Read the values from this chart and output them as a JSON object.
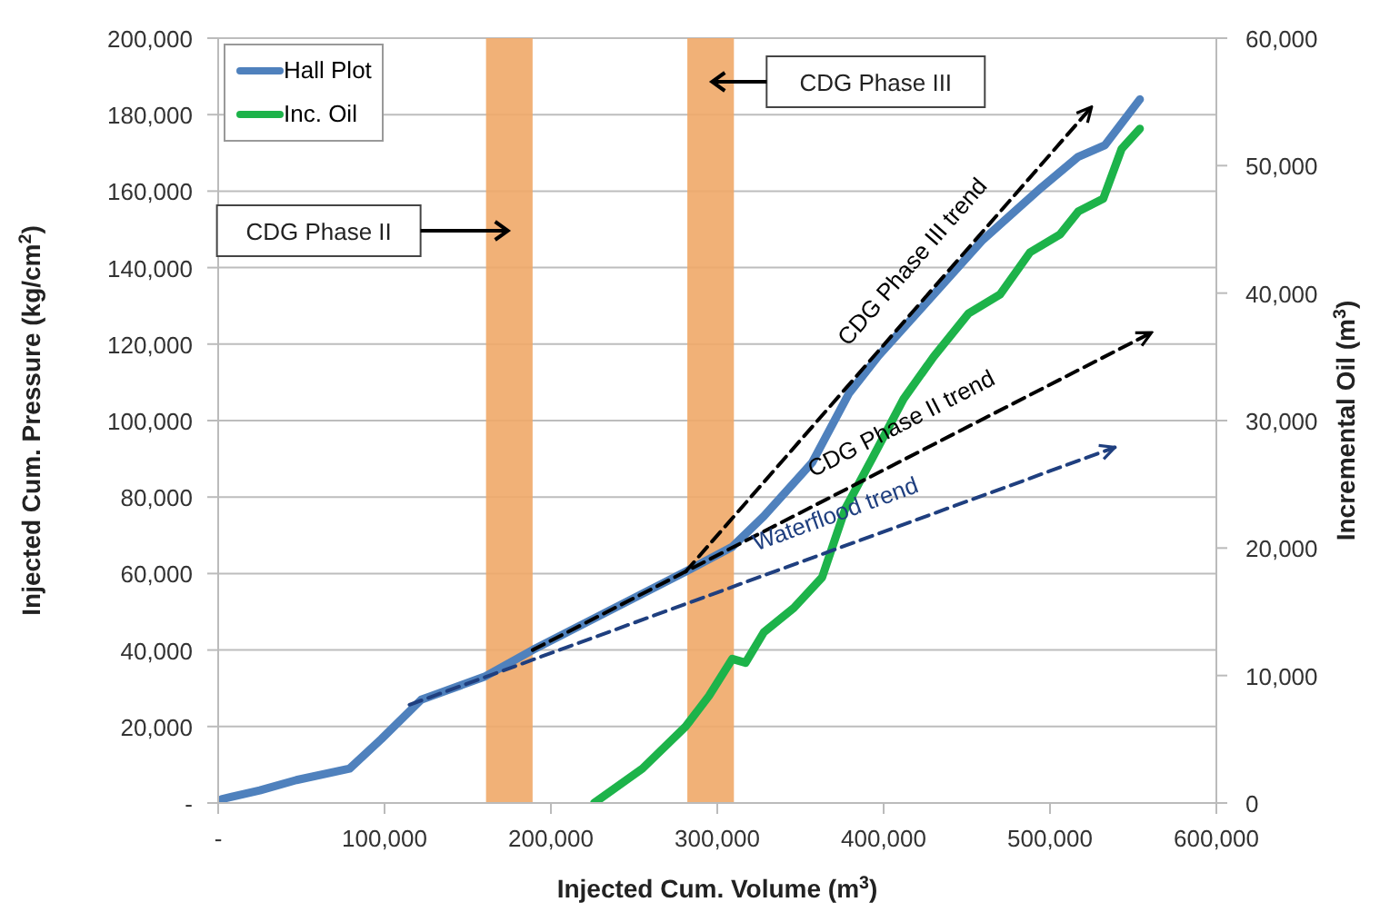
{
  "chart_data": {
    "type": "line",
    "xlabel": "Injected Cum. Volume (m$^{3}$)",
    "ylabel": "Injected Cum. Pressure (kg/cm$^{2}$)",
    "y2label": "Incremental Oil (m$^{3}$)",
    "xlim": [
      0,
      600000
    ],
    "xticks": [
      {
        "value": 0,
        "label": "-"
      },
      {
        "value": 100000,
        "label": "100,000"
      },
      {
        "value": 200000,
        "label": "200,000"
      },
      {
        "value": 300000,
        "label": "300,000"
      },
      {
        "value": 400000,
        "label": "400,000"
      },
      {
        "value": 500000,
        "label": "500,000"
      },
      {
        "value": 600000,
        "label": "600,000"
      }
    ],
    "ylim": [
      0,
      200000
    ],
    "yticks": [
      {
        "value": 0,
        "label": "-"
      },
      {
        "value": 20000,
        "label": "20,000"
      },
      {
        "value": 40000,
        "label": "40,000"
      },
      {
        "value": 60000,
        "label": "60,000"
      },
      {
        "value": 80000,
        "label": "80,000"
      },
      {
        "value": 100000,
        "label": "100,000"
      },
      {
        "value": 120000,
        "label": "120,000"
      },
      {
        "value": 140000,
        "label": "140,000"
      },
      {
        "value": 160000,
        "label": "160,000"
      },
      {
        "value": 180000,
        "label": "180,000"
      },
      {
        "value": 200000,
        "label": "200,000"
      }
    ],
    "y2lim": [
      0,
      60000
    ],
    "y2ticks": [
      0,
      {
        "value": 10000,
        "label": "10,000"
      },
      {
        "value": 20000,
        "label": "20,000"
      },
      {
        "value": 30000,
        "label": "30,000"
      },
      {
        "value": 40000,
        "label": "40,000"
      },
      {
        "value": 50000,
        "label": "50,000"
      },
      {
        "value": 60000,
        "label": "60,000"
      }
    ],
    "grid": "y",
    "legend": "top left",
    "marker": "none",
    "bands": [
      {
        "axis": "x",
        "from": 161000,
        "to": 189000,
        "label": "CDG Phase II",
        "color": "#f0a868"
      },
      {
        "axis": "x",
        "from": 282000,
        "to": 310000,
        "label": "CDG Phase III",
        "color": "#f0a868"
      }
    ],
    "series": [
      {
        "name": "Hall Plot",
        "color": "#4f81bd",
        "line_style": "solid",
        "x": [
          2000,
          25000,
          47000,
          79000,
          98000,
          122000,
          160000,
          189000,
          281000,
          309000,
          328000,
          357000,
          379000,
          397000,
          426000,
          459000,
          495000,
          517000,
          533000,
          554000
        ],
        "values": [
          1000,
          3300,
          6000,
          9000,
          16700,
          27000,
          33000,
          40000,
          60500,
          67000,
          75000,
          89000,
          107000,
          117000,
          131000,
          147000,
          161000,
          169000,
          172000,
          184000
        ]
      },
      {
        "name": "Inc. Oil",
        "color": "#1db34a",
        "line_style": "solid",
        "axis": "y2",
        "x": [
          226000,
          255000,
          281000,
          295000,
          309000,
          317000,
          328000,
          346000,
          363000,
          377000,
          393000,
          412000,
          430000,
          451000,
          470000,
          488000,
          506000,
          517000,
          532000,
          543000,
          554000
        ],
        "values": [
          0,
          2700,
          6000,
          8400,
          11300,
          11000,
          13400,
          15300,
          17700,
          23100,
          27000,
          31700,
          35000,
          38400,
          39900,
          43200,
          44600,
          46400,
          47400,
          51300,
          52900
        ]
      },
      {
        "name": "Waterflood trend",
        "color": "#1f3f7f",
        "line_style": "dashed",
        "x": [
          115000,
          539000
        ],
        "values": [
          25700,
          93000
        ]
      },
      {
        "name": "CDG Phase II trend",
        "color": "#000000",
        "line_style": "dashed",
        "x": [
          189000,
          561000
        ],
        "values": [
          40000,
          123000
        ]
      },
      {
        "name": "CDG Phase III trend",
        "color": "#000000",
        "line_style": "dashed",
        "x": [
          281000,
          525000
        ],
        "values": [
          60500,
          182000
        ]
      }
    ]
  }
}
